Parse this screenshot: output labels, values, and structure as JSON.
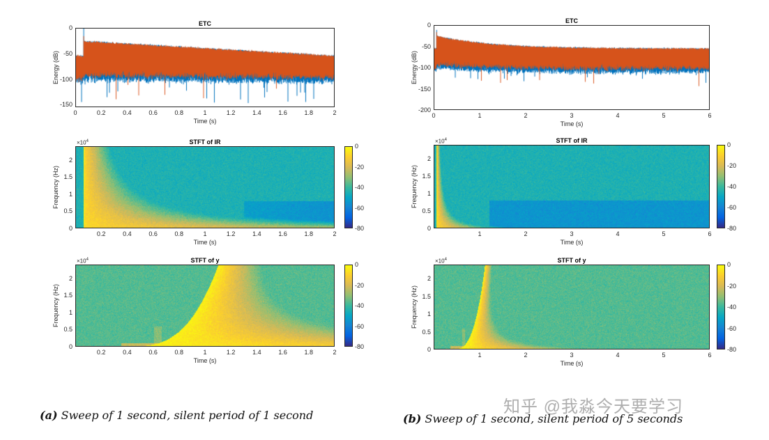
{
  "watermark": "知乎 @我淼今天要学习",
  "captions": [
    {
      "label": "(a)",
      "text": "Sweep of 1 second, silent period of 1 second"
    },
    {
      "label": "(b)",
      "text": "Sweep of 1 second, silent period of 5 seconds"
    }
  ],
  "colors": {
    "series_blue": "#0072bd",
    "series_orange": "#d95319",
    "colormap": "parula"
  },
  "chart_data": [
    {
      "id": "a-etc",
      "type": "line",
      "title": "ETC",
      "xlabel": "Time (s)",
      "ylabel": "Energy (dB)",
      "xlim": [
        0,
        2
      ],
      "ylim": [
        -155,
        0
      ],
      "xticks": [
        0,
        0.2,
        0.4,
        0.6,
        0.8,
        1,
        1.2,
        1.4,
        1.6,
        1.8,
        2
      ],
      "yticks": [
        0,
        -50,
        -100,
        -150
      ],
      "series": [
        {
          "color": "#0072bd",
          "onset_s": 0.06,
          "peak_db": 0,
          "upper_envelope_db": [
            -25,
            -55
          ],
          "lower_envelope_db": [
            -100,
            -105
          ]
        },
        {
          "color": "#d95319",
          "onset_s": 0.06,
          "peak_db": -15,
          "upper_envelope_db": [
            -25,
            -55
          ],
          "lower_envelope_db": [
            -95,
            -100
          ]
        }
      ]
    },
    {
      "id": "a-stft-ir",
      "type": "heatmap",
      "title": "STFT of IR",
      "xlabel": "Time (s)",
      "ylabel": "Frequency (Hz)",
      "xlim": [
        0,
        2
      ],
      "ylim": [
        0,
        24000
      ],
      "xticks": [
        0.2,
        0.4,
        0.6,
        0.8,
        1,
        1.2,
        1.4,
        1.6,
        1.8,
        2
      ],
      "yticks": [
        0,
        0.5,
        1,
        1.5,
        2
      ],
      "y_multiplier": "×10",
      "y_multiplier_exp": "4",
      "colorbar": {
        "ticks": [
          0,
          -20,
          -40,
          -60,
          -80
        ],
        "range": [
          -80,
          0
        ]
      }
    },
    {
      "id": "a-stft-y",
      "type": "heatmap",
      "title": "STFT of y",
      "xlabel": "Time (s)",
      "ylabel": "Frequency (Hz)",
      "xlim": [
        0,
        2
      ],
      "ylim": [
        0,
        24000
      ],
      "xticks": [
        0.2,
        0.4,
        0.6,
        0.8,
        1,
        1.2,
        1.4,
        1.6,
        1.8,
        2
      ],
      "yticks": [
        0,
        0.5,
        1,
        1.5,
        2
      ],
      "y_multiplier": "×10",
      "y_multiplier_exp": "4",
      "colorbar": {
        "ticks": [
          0,
          -20,
          -40,
          -60,
          -80
        ],
        "range": [
          -80,
          0
        ]
      }
    },
    {
      "id": "b-etc",
      "type": "line",
      "title": "ETC",
      "xlabel": "Time (s)",
      "ylabel": "Energy (dB)",
      "xlim": [
        0,
        6
      ],
      "ylim": [
        -200,
        0
      ],
      "xticks": [
        0,
        1,
        2,
        3,
        4,
        5,
        6
      ],
      "yticks": [
        0,
        -50,
        -100,
        -150,
        -200
      ],
      "series": [
        {
          "color": "#0072bd",
          "onset_s": 0.05,
          "peak_db": -10,
          "upper_envelope_db": [
            -25,
            -55
          ],
          "lower_envelope_db": [
            -100,
            -110
          ]
        },
        {
          "color": "#d95319",
          "onset_s": 0.05,
          "peak_db": -15,
          "upper_envelope_db": [
            -25,
            -55
          ],
          "lower_envelope_db": [
            -95,
            -105
          ]
        }
      ]
    },
    {
      "id": "b-stft-ir",
      "type": "heatmap",
      "title": "STFT of IR",
      "xlabel": "Time (s)",
      "ylabel": "Frequency (Hz)",
      "xlim": [
        0,
        6
      ],
      "ylim": [
        0,
        24000
      ],
      "xticks": [
        1,
        2,
        3,
        4,
        5,
        6
      ],
      "yticks": [
        0,
        0.5,
        1,
        1.5,
        2
      ],
      "y_multiplier": "×10",
      "y_multiplier_exp": "4",
      "colorbar": {
        "ticks": [
          0,
          -20,
          -40,
          -60,
          -80
        ],
        "range": [
          -80,
          0
        ]
      }
    },
    {
      "id": "b-stft-y",
      "type": "heatmap",
      "title": "STFT of y",
      "xlabel": "Time (s)",
      "ylabel": "Frequency (Hz)",
      "xlim": [
        0,
        6
      ],
      "ylim": [
        0,
        24000
      ],
      "xticks": [
        1,
        2,
        3,
        4,
        5,
        6
      ],
      "yticks": [
        0,
        0.5,
        1,
        1.5,
        2
      ],
      "y_multiplier": "×10",
      "y_multiplier_exp": "4",
      "colorbar": {
        "ticks": [
          0,
          -20,
          -40,
          -60,
          -80
        ],
        "range": [
          -80,
          0
        ]
      }
    }
  ]
}
